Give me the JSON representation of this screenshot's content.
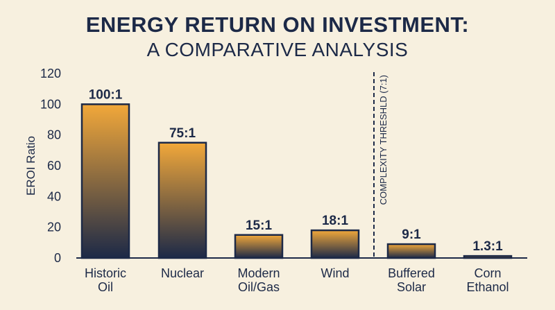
{
  "title": {
    "line1": "ENERGY RETURN ON INVESTMENT:",
    "line2": "A COMPARATIVE ANALYSIS"
  },
  "colors": {
    "text": "#1c2947",
    "bar_top": "#f2a83a",
    "bar_bottom": "#1c2947",
    "background": "#f7f0df"
  },
  "chart_data": {
    "type": "bar",
    "ylabel": "EROI Ratio",
    "xlabel": "",
    "ylim": [
      0,
      120
    ],
    "yticks": [
      0,
      20,
      40,
      60,
      80,
      100,
      120
    ],
    "grid": false,
    "categories": [
      [
        "Historic",
        "Oil"
      ],
      [
        "Nuclear"
      ],
      [
        "Modern",
        "Oil/Gas"
      ],
      [
        "Wind"
      ],
      [
        "Buffered",
        "Solar"
      ],
      [
        "Corn",
        "Ethanol"
      ]
    ],
    "values": [
      100,
      75,
      15,
      18,
      9,
      1.3
    ],
    "data_labels": [
      "100:1",
      "75:1",
      "15:1",
      "18:1",
      "9:1",
      "1.3:1"
    ],
    "annotations": [
      {
        "type": "vertical-dashed-line",
        "between_categories": [
          3,
          4
        ],
        "label": "COMPLEXITY THRESHLD (7:1)"
      }
    ]
  }
}
